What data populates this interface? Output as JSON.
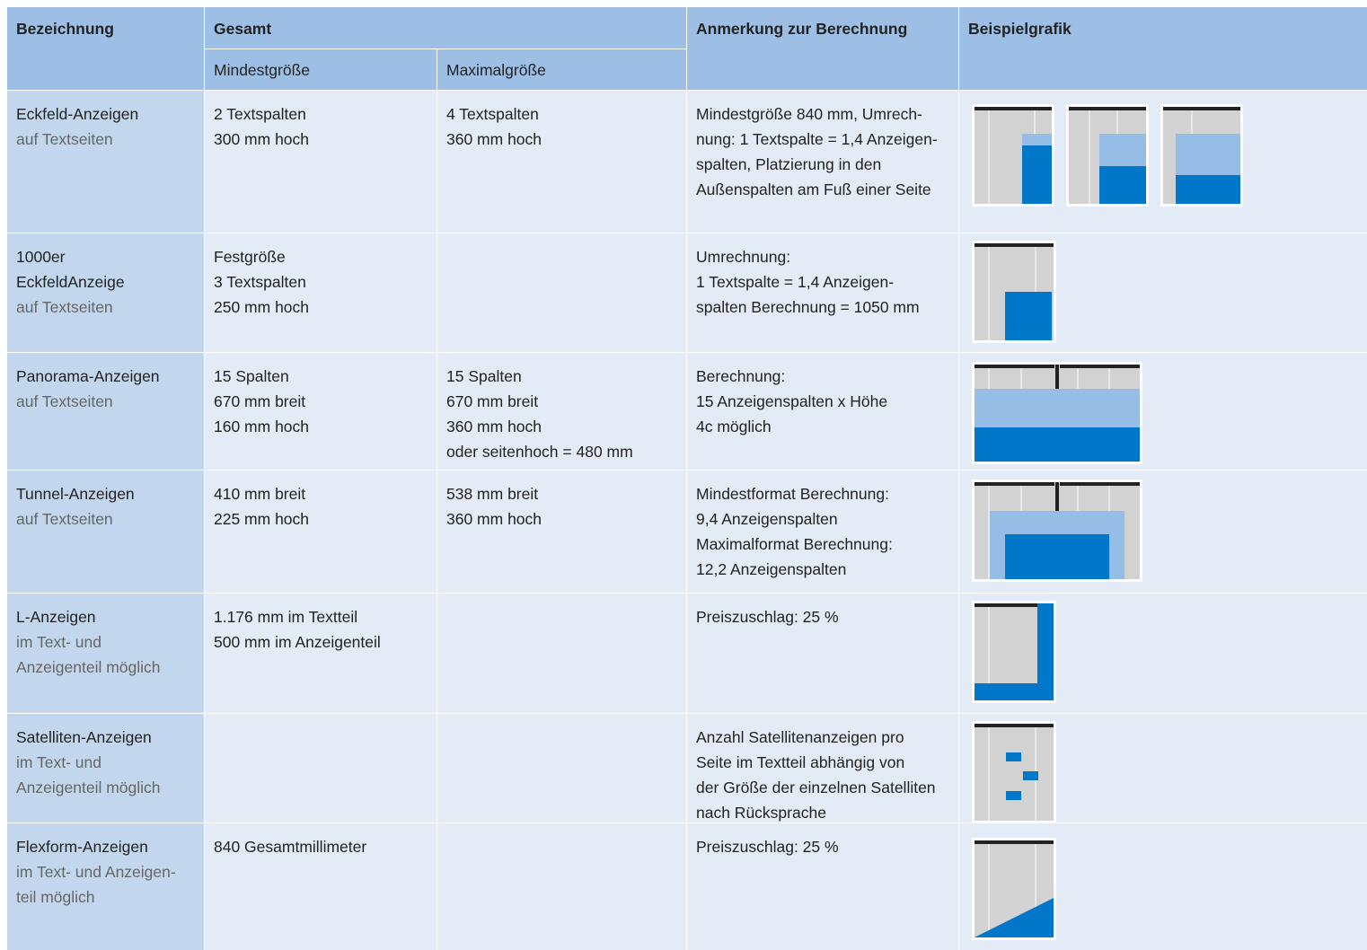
{
  "header": {
    "bezeichnung": "Bezeichnung",
    "gesamt": "Gesamt",
    "mindest": "Mindestgröße",
    "maximal": "Maximalgröße",
    "anmerkung": "Anmerkung zur Berechnung",
    "grafik": "Beispielgrafik"
  },
  "rows": [
    {
      "title": "Eckfeld-Anzeigen",
      "subtitle": [
        "auf Textseiten"
      ],
      "min": [
        "2 Textspalten",
        "300 mm hoch"
      ],
      "max": [
        "4 Textspalten",
        "360 mm hoch"
      ],
      "note": [
        "Mindestgröße 840 mm, Umrech-",
        "nung: 1 Textspalte = 1,4 Anzeigen-",
        "spalten, Platzierung in den",
        "Außenspalten am Fuß einer Seite"
      ]
    },
    {
      "title": "1000er",
      "title2": "EckfeldAnzeige",
      "subtitle": [
        "auf Textseiten"
      ],
      "min": [
        "Festgröße",
        "3 Textspalten",
        "250 mm hoch"
      ],
      "max": [],
      "note": [
        "Umrechnung:",
        "1 Textspalte = 1,4 Anzeigen-",
        "spalten Berechnung = 1050 mm"
      ]
    },
    {
      "title": "Panorama-Anzeigen",
      "subtitle": [
        "auf Textseiten"
      ],
      "min": [
        "15 Spalten",
        "670 mm breit",
        "160 mm hoch"
      ],
      "max": [
        "15 Spalten",
        "670 mm breit",
        "360 mm hoch",
        "oder seitenhoch = 480 mm"
      ],
      "note": [
        "Berechnung:",
        "15 Anzeigenspalten x Höhe",
        "4c möglich"
      ]
    },
    {
      "title": "Tunnel-Anzeigen",
      "subtitle": [
        "auf Textseiten"
      ],
      "min": [
        "410 mm breit",
        "225 mm hoch"
      ],
      "max": [
        "538 mm breit",
        "360 mm hoch"
      ],
      "note": [
        "Mindestformat Berechnung:",
        "9,4 Anzeigenspalten",
        "Maximalformat Berechnung:",
        "12,2 Anzeigenspalten"
      ]
    },
    {
      "title": "L-Anzeigen",
      "subtitle": [
        "im Text- und",
        "Anzeigenteil möglich"
      ],
      "min": [
        "1.176 mm im Textteil",
        "500 mm im Anzeigenteil"
      ],
      "max": [],
      "note": [
        "Preiszuschlag: 25 %"
      ]
    },
    {
      "title": "Satelliten-Anzeigen",
      "subtitle": [
        "im Text- und",
        "Anzeigenteil möglich"
      ],
      "min": [],
      "max": [],
      "note": [
        "Anzahl Satellitenanzeigen pro",
        "Seite im Textteil abhängig von",
        "der Größe der einzelnen Satelliten",
        "nach Rücksprache"
      ]
    },
    {
      "title": "Flexform-Anzeigen",
      "subtitle": [
        "im Text- und Anzeigen-",
        "teil möglich"
      ],
      "min": [
        "840 Gesamtmillimeter"
      ],
      "max": [],
      "note": [
        "Preiszuschlag: 25 %"
      ]
    }
  ],
  "colors": {
    "header_bg": "#9dbfe5",
    "label_bg": "#c2d7ee",
    "cell_bg": "#e3ecf6",
    "page_gray": "#d2d2d2",
    "ad_blue": "#0077c8",
    "ad_light_blue": "#95bde6"
  }
}
